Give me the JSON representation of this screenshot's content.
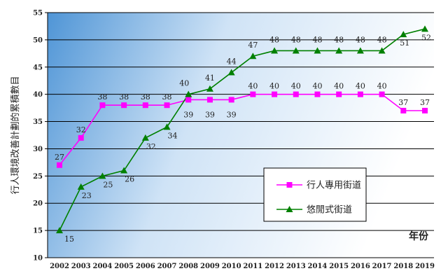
{
  "chart_data": {
    "type": "line",
    "ylabel": "行人環境改善計劃的累積數目",
    "corner_label": "年份",
    "ylim": [
      10,
      55
    ],
    "yticks": [
      10,
      15,
      20,
      25,
      30,
      35,
      40,
      45,
      50,
      55
    ],
    "x": [
      "2002",
      "2003",
      "2004",
      "2005",
      "2006",
      "2007",
      "2008",
      "2009",
      "2010",
      "2011",
      "2012",
      "2013",
      "2014",
      "2015",
      "2016",
      "2017",
      "2018",
      "2019"
    ],
    "grid": "horizontal",
    "legend_position": "bottom-right",
    "series": [
      {
        "name": "行人專用街道",
        "color": "#ff00ff",
        "marker": "square",
        "values": [
          27,
          32,
          38,
          38,
          38,
          38,
          39,
          39,
          39,
          40,
          40,
          40,
          40,
          40,
          40,
          40,
          37,
          37
        ]
      },
      {
        "name": "悠閒式街道",
        "color": "#008000",
        "marker": "triangle",
        "values": [
          15,
          23,
          25,
          26,
          32,
          34,
          40,
          41,
          44,
          47,
          48,
          48,
          48,
          48,
          48,
          48,
          51,
          52
        ]
      }
    ]
  }
}
